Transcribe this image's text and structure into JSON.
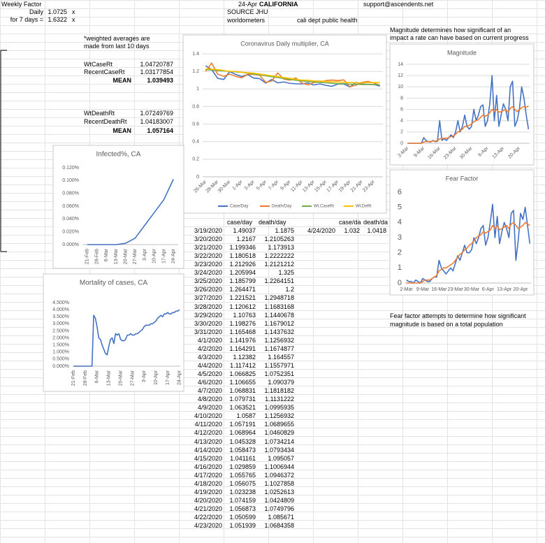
{
  "sheet": {
    "weekly": {
      "title": "Weekly Factor",
      "daily_label": "Daily",
      "daily_value": "1.0725",
      "daily_unit": "x",
      "week_label": "for 7 days =",
      "week_value": "1.6322",
      "week_unit": "x"
    },
    "header": {
      "date": "24-Apr",
      "state": "CALIFORNIA",
      "source": "SOURCE JHU",
      "site": "worldometers",
      "dept": "cali dept public health",
      "email": "support@ascendents.net"
    },
    "note_weighted": [
      "*weighted averages are",
      "made from last 10 days"
    ],
    "rates": [
      [
        "WtCaseRt",
        "1.04720787"
      ],
      [
        "RecentCaseRt",
        "1.03177854"
      ],
      [
        "MEAN",
        "1.039493"
      ],
      [
        "WtDeathRt",
        "1.07249769"
      ],
      [
        "RecentDeathRt",
        "1.04183007"
      ],
      [
        "MEAN",
        "1.057164"
      ]
    ],
    "magnitude_note": [
      "Magnitude determines how significant of an",
      "impact a rate can have based on current progress"
    ],
    "fear_note": [
      "Fear factor attempts to determine how significant",
      "magnitude is based on a total population"
    ],
    "table": {
      "columns": [
        "case/day",
        "death/day"
      ],
      "rows": [
        [
          "3/19/2020",
          "1.49037",
          "1.1875"
        ],
        [
          "3/20/2020",
          "1.2167",
          "1.2105263"
        ],
        [
          "3/21/2020",
          "1.199346",
          "1.173913"
        ],
        [
          "3/22/2020",
          "1.180518",
          "1.2222222"
        ],
        [
          "3/23/2020",
          "1.212926",
          "1.2121212"
        ],
        [
          "3/24/2020",
          "1.205994",
          "1.325"
        ],
        [
          "3/25/2020",
          "1.185799",
          "1.2264151"
        ],
        [
          "3/26/2020",
          "1.264471",
          "1.2"
        ],
        [
          "3/27/2020",
          "1.221521",
          "1.2948718"
        ],
        [
          "3/28/2020",
          "1.120612",
          "1.1683168"
        ],
        [
          "3/29/2020",
          "1.10763",
          "1.1440678"
        ],
        [
          "3/30/2020",
          "1.198276",
          "1.1679012"
        ],
        [
          "3/31/2020",
          "1.165468",
          "1.1437632"
        ],
        [
          "4/1/2020",
          "1.141976",
          "1.1256932"
        ],
        [
          "4/2/2020",
          "1.164291",
          "1.1674877"
        ],
        [
          "4/3/2020",
          "1.12382",
          "1.164557"
        ],
        [
          "4/4/2020",
          "1.117412",
          "1.1557971"
        ],
        [
          "4/5/2020",
          "1.066825",
          "1.0752351"
        ],
        [
          "4/6/2020",
          "1.106655",
          "1.090379"
        ],
        [
          "4/7/2020",
          "1.068831",
          "1.1818182"
        ],
        [
          "4/8/2020",
          "1.079731",
          "1.1131222"
        ],
        [
          "4/9/2020",
          "1.063521",
          "1.0995935"
        ],
        [
          "4/10/2020",
          "1.0587",
          "1.1256932"
        ],
        [
          "4/11/2020",
          "1.057191",
          "1.0689655"
        ],
        [
          "4/12/2020",
          "1.068964",
          "1.0460829"
        ],
        [
          "4/13/2020",
          "1.045328",
          "1.0734214"
        ],
        [
          "4/14/2020",
          "1.058473",
          "1.0793434"
        ],
        [
          "4/15/2020",
          "1.041161",
          "1.095057"
        ],
        [
          "4/16/2020",
          "1.029859",
          "1.1006944"
        ],
        [
          "4/17/2020",
          "1.055765",
          "1.0946372"
        ],
        [
          "4/18/2020",
          "1.056075",
          "1.1027858"
        ],
        [
          "4/19/2020",
          "1.023238",
          "1.0252613"
        ],
        [
          "4/20/2020",
          "1.074159",
          "1.0424809"
        ],
        [
          "4/21/2020",
          "1.056873",
          "1.0749796"
        ],
        [
          "4/22/2020",
          "1.050599",
          "1.085671"
        ],
        [
          "4/23/2020",
          "1.051939",
          "1.0684358"
        ]
      ]
    },
    "today": {
      "columns": [
        "case/da",
        "death/da"
      ],
      "row": [
        "4/24/2020",
        "1.032",
        "1.0418"
      ]
    }
  },
  "chart_data": [
    {
      "type": "line",
      "title": "Coronavirus Daily multiplier, CA",
      "grid": true,
      "legend": "bottom",
      "categories": [
        "26-Mar",
        null,
        "28-Mar",
        null,
        "30-Mar",
        null,
        "1-Apr",
        null,
        "3-Apr",
        null,
        "5-Apr",
        null,
        "7-Apr",
        null,
        "9-Apr",
        null,
        "11-Apr",
        null,
        "13-Apr",
        null,
        "15-Apr",
        null,
        "17-Apr",
        null,
        "19-Apr",
        null,
        "21-Apr",
        null,
        "23-Apr",
        null
      ],
      "ylim": [
        0,
        1.4
      ],
      "yticks": [
        0,
        0.2,
        0.4,
        0.6,
        0.8,
        1,
        1.2,
        1.4
      ],
      "series": [
        {
          "name": "Case/Day",
          "color": "#4472c4",
          "values": [
            1.264,
            1.222,
            1.121,
            1.108,
            1.198,
            1.165,
            1.142,
            1.164,
            1.124,
            1.117,
            1.067,
            1.107,
            1.069,
            1.08,
            1.064,
            1.059,
            1.057,
            1.069,
            1.045,
            1.058,
            1.041,
            1.03,
            1.056,
            1.056,
            1.023,
            1.074,
            1.057,
            1.051,
            1.052,
            1.032
          ]
        },
        {
          "name": "Death/Day",
          "color": "#ed7d31",
          "values": [
            1.2,
            1.295,
            1.168,
            1.144,
            1.168,
            1.144,
            1.126,
            1.167,
            1.165,
            1.156,
            1.075,
            1.09,
            1.182,
            1.113,
            1.1,
            1.126,
            1.069,
            1.046,
            1.073,
            1.079,
            1.095,
            1.101,
            1.095,
            1.103,
            1.025,
            1.042,
            1.075,
            1.086,
            1.068,
            1.042
          ]
        },
        {
          "name": "Wt.CaseRt",
          "color": "#70ad47",
          "values": [
            1.22,
            1.215,
            1.21,
            1.205,
            1.2,
            1.195,
            1.19,
            1.18,
            1.17,
            1.16,
            1.15,
            1.14,
            1.13,
            1.12,
            1.11,
            1.1,
            1.09,
            1.085,
            1.08,
            1.075,
            1.07,
            1.065,
            1.06,
            1.06,
            1.055,
            1.055,
            1.05,
            1.05,
            1.05,
            1.047
          ]
        },
        {
          "name": "Wt.DeRt",
          "color": "#ffc000",
          "values": [
            1.23,
            1.225,
            1.22,
            1.21,
            1.2,
            1.2,
            1.19,
            1.185,
            1.18,
            1.17,
            1.16,
            1.15,
            1.14,
            1.13,
            1.12,
            1.11,
            1.1,
            1.1,
            1.09,
            1.09,
            1.085,
            1.08,
            1.08,
            1.075,
            1.075,
            1.07,
            1.07,
            1.07,
            1.072,
            1.072
          ]
        }
      ]
    },
    {
      "type": "line",
      "title": "Magnitude",
      "grid": true,
      "categories": [
        "2-Mar",
        null,
        null,
        null,
        null,
        null,
        null,
        "9-Mar",
        null,
        null,
        null,
        null,
        null,
        null,
        "16-Mar",
        null,
        null,
        null,
        null,
        null,
        null,
        "23-Mar",
        null,
        null,
        null,
        null,
        null,
        null,
        "30-Mar",
        null,
        null,
        null,
        null,
        null,
        null,
        "6-Apr",
        null,
        null,
        null,
        null,
        null,
        null,
        "13-Apr",
        null,
        null,
        null,
        null,
        null,
        null,
        "20-Apr",
        null,
        null,
        null,
        null
      ],
      "ylim": [
        0,
        14
      ],
      "yticks": [
        0,
        2,
        4,
        6,
        8,
        10,
        12,
        14
      ],
      "series": [
        {
          "color": "#4472c4",
          "values": [
            0,
            0,
            0,
            0,
            0,
            0,
            0,
            1,
            0.5,
            0.3,
            0.2,
            0.5,
            0.3,
            0.3,
            4,
            0.5,
            0.8,
            0.5,
            1,
            1.5,
            1,
            2,
            4,
            2,
            3,
            5,
            3,
            2.5,
            3,
            6,
            4,
            5,
            6.5,
            6.8,
            3,
            4,
            7,
            12,
            4,
            8.5,
            3,
            5,
            7,
            6,
            4,
            10,
            11,
            3,
            4,
            6,
            10,
            8,
            5,
            2.5
          ]
        },
        {
          "color": "#ed7d31",
          "values": [
            0,
            0,
            0,
            0,
            0,
            0,
            0,
            0.2,
            0.3,
            0.3,
            0.3,
            0.4,
            0.4,
            0.4,
            0.8,
            0.8,
            0.9,
            0.9,
            1,
            1.2,
            1.3,
            1.6,
            2,
            2.2,
            2.5,
            3,
            3,
            3.2,
            3.4,
            3.8,
            4,
            4.2,
            4.6,
            5,
            4.8,
            5,
            5.4,
            6,
            5.6,
            6,
            5.5,
            5.6,
            5.8,
            6,
            5.5,
            6.2,
            6.5,
            6,
            5.6,
            6,
            6.3,
            6.5,
            6.4,
            6.6
          ]
        }
      ]
    },
    {
      "type": "line",
      "title": "Fear Factor",
      "grid": false,
      "categories": [
        "2-Mar",
        null,
        null,
        null,
        null,
        null,
        null,
        "9-Mar",
        null,
        null,
        null,
        null,
        null,
        null,
        "16-Mar",
        null,
        null,
        null,
        null,
        null,
        null,
        "23-Mar",
        null,
        null,
        null,
        null,
        null,
        null,
        "30-Mar",
        null,
        null,
        null,
        null,
        null,
        null,
        "6-Apr",
        null,
        null,
        null,
        null,
        null,
        null,
        "13-Apr",
        null,
        null,
        null,
        null,
        null,
        null,
        "20-Apr",
        null,
        null,
        null,
        null
      ],
      "ylim": [
        0,
        6
      ],
      "yticks": [
        0,
        1,
        2,
        3,
        4,
        5,
        6
      ],
      "series": [
        {
          "color": "#4472c4",
          "values": [
            0.2,
            0.1,
            0.1,
            0,
            0.2,
            0.1,
            0,
            0.3,
            0.2,
            0.1,
            0.1,
            0.3,
            0.4,
            0.4,
            1.5,
            1,
            0.8,
            0.6,
            0.8,
            1,
            0.8,
            1.3,
            1.8,
            1.5,
            2,
            2.5,
            2,
            2,
            2.2,
            3,
            2.6,
            3,
            3.6,
            3.8,
            2.5,
            3,
            4,
            5.2,
            3,
            4.4,
            2.6,
            3.4,
            4,
            3.6,
            3,
            4.6,
            4.8,
            1.5,
            2.8,
            4.6,
            4.2,
            5,
            3.8,
            2.6
          ]
        },
        {
          "color": "#ed7d31",
          "values": [
            0,
            0,
            0,
            0,
            0,
            0,
            0,
            0.1,
            0.2,
            0.2,
            0.2,
            0.3,
            0.4,
            0.5,
            0.8,
            0.9,
            1,
            1,
            1.1,
            1.2,
            1.3,
            1.5,
            1.7,
            1.9,
            2,
            2.2,
            2.3,
            2.5,
            2.6,
            2.8,
            3,
            3.1,
            3.2,
            3.4,
            3.3,
            3.4,
            3.5,
            3.8,
            3.6,
            3.8,
            3.5,
            3.6,
            3.7,
            3.8,
            3.6,
            3.9,
            4,
            3.8,
            3.6,
            3.7,
            3.8,
            4,
            3.9,
            3.8
          ]
        }
      ]
    },
    {
      "type": "line",
      "title": "Infected%, CA",
      "grid": false,
      "categories": [
        "21-Feb",
        "28-Feb",
        "6-Mar",
        "13-Mar",
        "20-Mar",
        "27-Mar",
        "3-Apr",
        "10-Apr",
        "17-Apr",
        "24-Apr"
      ],
      "ylim": [
        0,
        0.12
      ],
      "yticks": [
        {
          "value": 0,
          "label": "0.000%"
        },
        {
          "value": 0.02,
          "label": "0.020%"
        },
        {
          "value": 0.04,
          "label": "0.040%"
        },
        {
          "value": 0.06,
          "label": "0.060%"
        },
        {
          "value": 0.08,
          "label": "0.080%"
        },
        {
          "value": 0.1,
          "label": "0.100%"
        },
        {
          "value": 0.12,
          "label": "0.120%"
        }
      ],
      "series": [
        {
          "color": "#4472c4",
          "values": [
            0,
            0,
            0,
            0,
            0.002,
            0.01,
            0.03,
            0.05,
            0.07,
            0.102
          ]
        }
      ]
    },
    {
      "type": "line",
      "title": "Mortality of cases, CA",
      "grid": false,
      "categories": [
        "21-Feb",
        null,
        null,
        null,
        null,
        null,
        null,
        "28-Feb",
        null,
        null,
        null,
        null,
        null,
        null,
        "6-Mar",
        null,
        null,
        null,
        null,
        null,
        null,
        "13-Mar",
        null,
        null,
        null,
        null,
        null,
        null,
        "20-Mar",
        null,
        null,
        null,
        null,
        null,
        null,
        "27-Mar",
        null,
        null,
        null,
        null,
        null,
        null,
        "3-Apr",
        null,
        null,
        null,
        null,
        null,
        null,
        "10-Apr",
        null,
        null,
        null,
        null,
        null,
        null,
        "17-Apr",
        null,
        null,
        null,
        null,
        null,
        null,
        "24-Apr"
      ],
      "ylim": [
        0,
        4.5
      ],
      "yticks": [
        {
          "value": 0,
          "label": "0.000%"
        },
        {
          "value": 0.5,
          "label": "0.500%"
        },
        {
          "value": 1,
          "label": "1.000%"
        },
        {
          "value": 1.5,
          "label": "1.500%"
        },
        {
          "value": 2,
          "label": "2.000%"
        },
        {
          "value": 2.5,
          "label": "2.500%"
        },
        {
          "value": 3,
          "label": "3.000%"
        },
        {
          "value": 3.5,
          "label": "3.500%"
        },
        {
          "value": 4,
          "label": "4.000%"
        },
        {
          "value": 4.5,
          "label": "4.500%"
        }
      ],
      "series": [
        {
          "color": "#4472c4",
          "values": [
            0,
            0,
            0,
            0,
            0,
            0,
            0,
            0,
            0,
            0,
            0,
            0,
            3.6,
            3.4,
            2.8,
            2,
            1.9,
            1.5,
            1.2,
            0.9,
            0.8,
            1.4,
            1.9,
            2,
            1.6,
            2.3,
            2.2,
            2.3,
            1.9,
            1.8,
            1.8,
            1.9,
            2.2,
            2.2,
            2.3,
            2.2,
            2.2,
            2.3,
            2.3,
            2.4,
            2.5,
            2.6,
            2.8,
            2.9,
            2.9,
            2.9,
            3,
            3,
            3.1,
            3.2,
            3.4,
            3.5,
            3.6,
            3.5,
            3.7,
            3.7,
            3.8,
            3.7,
            3.7,
            3.8,
            3.8,
            3.9,
            3.9,
            4
          ]
        }
      ]
    }
  ]
}
